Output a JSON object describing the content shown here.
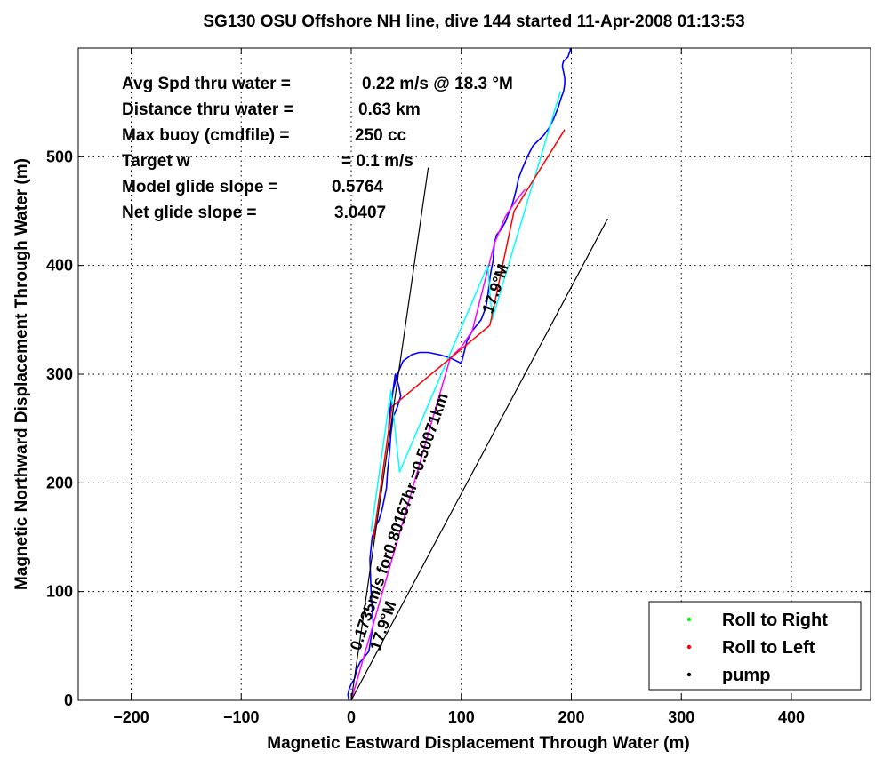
{
  "chart_data": {
    "type": "line",
    "title": "SG130 OSU Offshore NH line, dive 144 started 11-Apr-2008 01:13:53",
    "xlabel": "Magnetic Eastward Displacement Through Water (m)",
    "ylabel": "Magnetic Northward Displacement Through Water (m)",
    "xlim": [
      -240,
      480
    ],
    "ylim": [
      0,
      600
    ],
    "xticks": [
      -200,
      -100,
      0,
      100,
      200,
      300,
      400
    ],
    "xtick_labels": [
      "−200",
      "−100",
      "0",
      "100",
      "200",
      "300",
      "400"
    ],
    "yticks": [
      0,
      100,
      200,
      300,
      400,
      500
    ],
    "ytick_labels": [
      "0",
      "100",
      "200",
      "300",
      "400",
      "500"
    ],
    "grid": true,
    "legend_position": "bottom-right",
    "legend": [
      {
        "label": "Roll to Right",
        "color": "#00ff00"
      },
      {
        "label": "Roll to Left",
        "color": "#ff0000"
      },
      {
        "label": "pump",
        "color": "#000000"
      }
    ],
    "stats": [
      {
        "label": "Avg Spd thru water  =",
        "value": "0.22 m/s @  18.3 °M"
      },
      {
        "label": "Distance thru water =",
        "value": "0.63 km"
      },
      {
        "label": "Max buoy (cmdfile)  =",
        "value": "250 cc"
      },
      {
        "label": "Target w",
        "value": "= 0.1 m/s"
      },
      {
        "label": "Model glide slope    =",
        "value": "0.5764"
      },
      {
        "label": "Net glide slope         =",
        "value": "3.0407"
      }
    ],
    "series": [
      {
        "color": "#0000ff",
        "x": [
          -2,
          -3,
          -2,
          0,
          3,
          5,
          8,
          12,
          16,
          20,
          18,
          17,
          19,
          22,
          25,
          28,
          30,
          32,
          33,
          34,
          35,
          36,
          38,
          42,
          45,
          43,
          40,
          36,
          34,
          35,
          38,
          42,
          47,
          55,
          62,
          70,
          80,
          90,
          100,
          105,
          110,
          114,
          118,
          121,
          123,
          124,
          125,
          126,
          127,
          128,
          129,
          130,
          132,
          136,
          140,
          143,
          146,
          148,
          150,
          152,
          155,
          160,
          165,
          170,
          175,
          180,
          184,
          188,
          191,
          193,
          194,
          194,
          193,
          192,
          192,
          193,
          195,
          197,
          198,
          199,
          199
        ],
        "y": [
          0,
          5,
          10,
          15,
          20,
          28,
          35,
          40,
          45,
          70,
          100,
          130,
          150,
          160,
          165,
          175,
          185,
          195,
          210,
          220,
          230,
          245,
          260,
          270,
          280,
          290,
          300,
          270,
          250,
          265,
          285,
          300,
          312,
          318,
          320,
          320,
          318,
          315,
          310,
          330,
          340,
          345,
          350,
          358,
          365,
          372,
          380,
          388,
          395,
          400,
          405,
          420,
          428,
          433,
          440,
          448,
          455,
          462,
          470,
          480,
          488,
          500,
          510,
          515,
          520,
          527,
          535,
          545,
          555,
          560,
          567,
          572,
          578,
          582,
          585,
          588,
          590,
          592,
          595,
          598,
          600
        ]
      },
      {
        "color": "#ff00ff",
        "x": [
          0,
          10,
          20,
          30,
          40,
          50,
          60,
          70,
          80,
          90,
          100,
          110,
          120,
          130,
          140,
          150,
          158
        ],
        "y": [
          0,
          35,
          70,
          105,
          140,
          175,
          210,
          245,
          280,
          315,
          325,
          340,
          380,
          420,
          445,
          460,
          470
        ]
      },
      {
        "color": "#00ffff",
        "x": [
          18,
          36,
          44,
          124,
          128,
          190
        ],
        "y": [
          155,
          285,
          210,
          400,
          350,
          560
        ]
      },
      {
        "color": "#ff0000",
        "x": [
          20,
          37,
          126,
          148,
          194
        ],
        "y": [
          148,
          270,
          345,
          450,
          525
        ]
      }
    ],
    "lines": [
      {
        "x": [
          0,
          70
        ],
        "y": [
          0,
          490
        ]
      },
      {
        "x": [
          0,
          233
        ],
        "y": [
          0,
          443
        ]
      }
    ],
    "annotations": [
      {
        "text": "0.1735m/s for0.80167hr =0.50071km",
        "x": 8,
        "y": 45,
        "angle": -71
      },
      {
        "text": "17.9°M",
        "x": 26,
        "y": 45,
        "angle": -71
      },
      {
        "text": "17.9°M",
        "x": 128,
        "y": 355,
        "angle": -71
      }
    ]
  }
}
